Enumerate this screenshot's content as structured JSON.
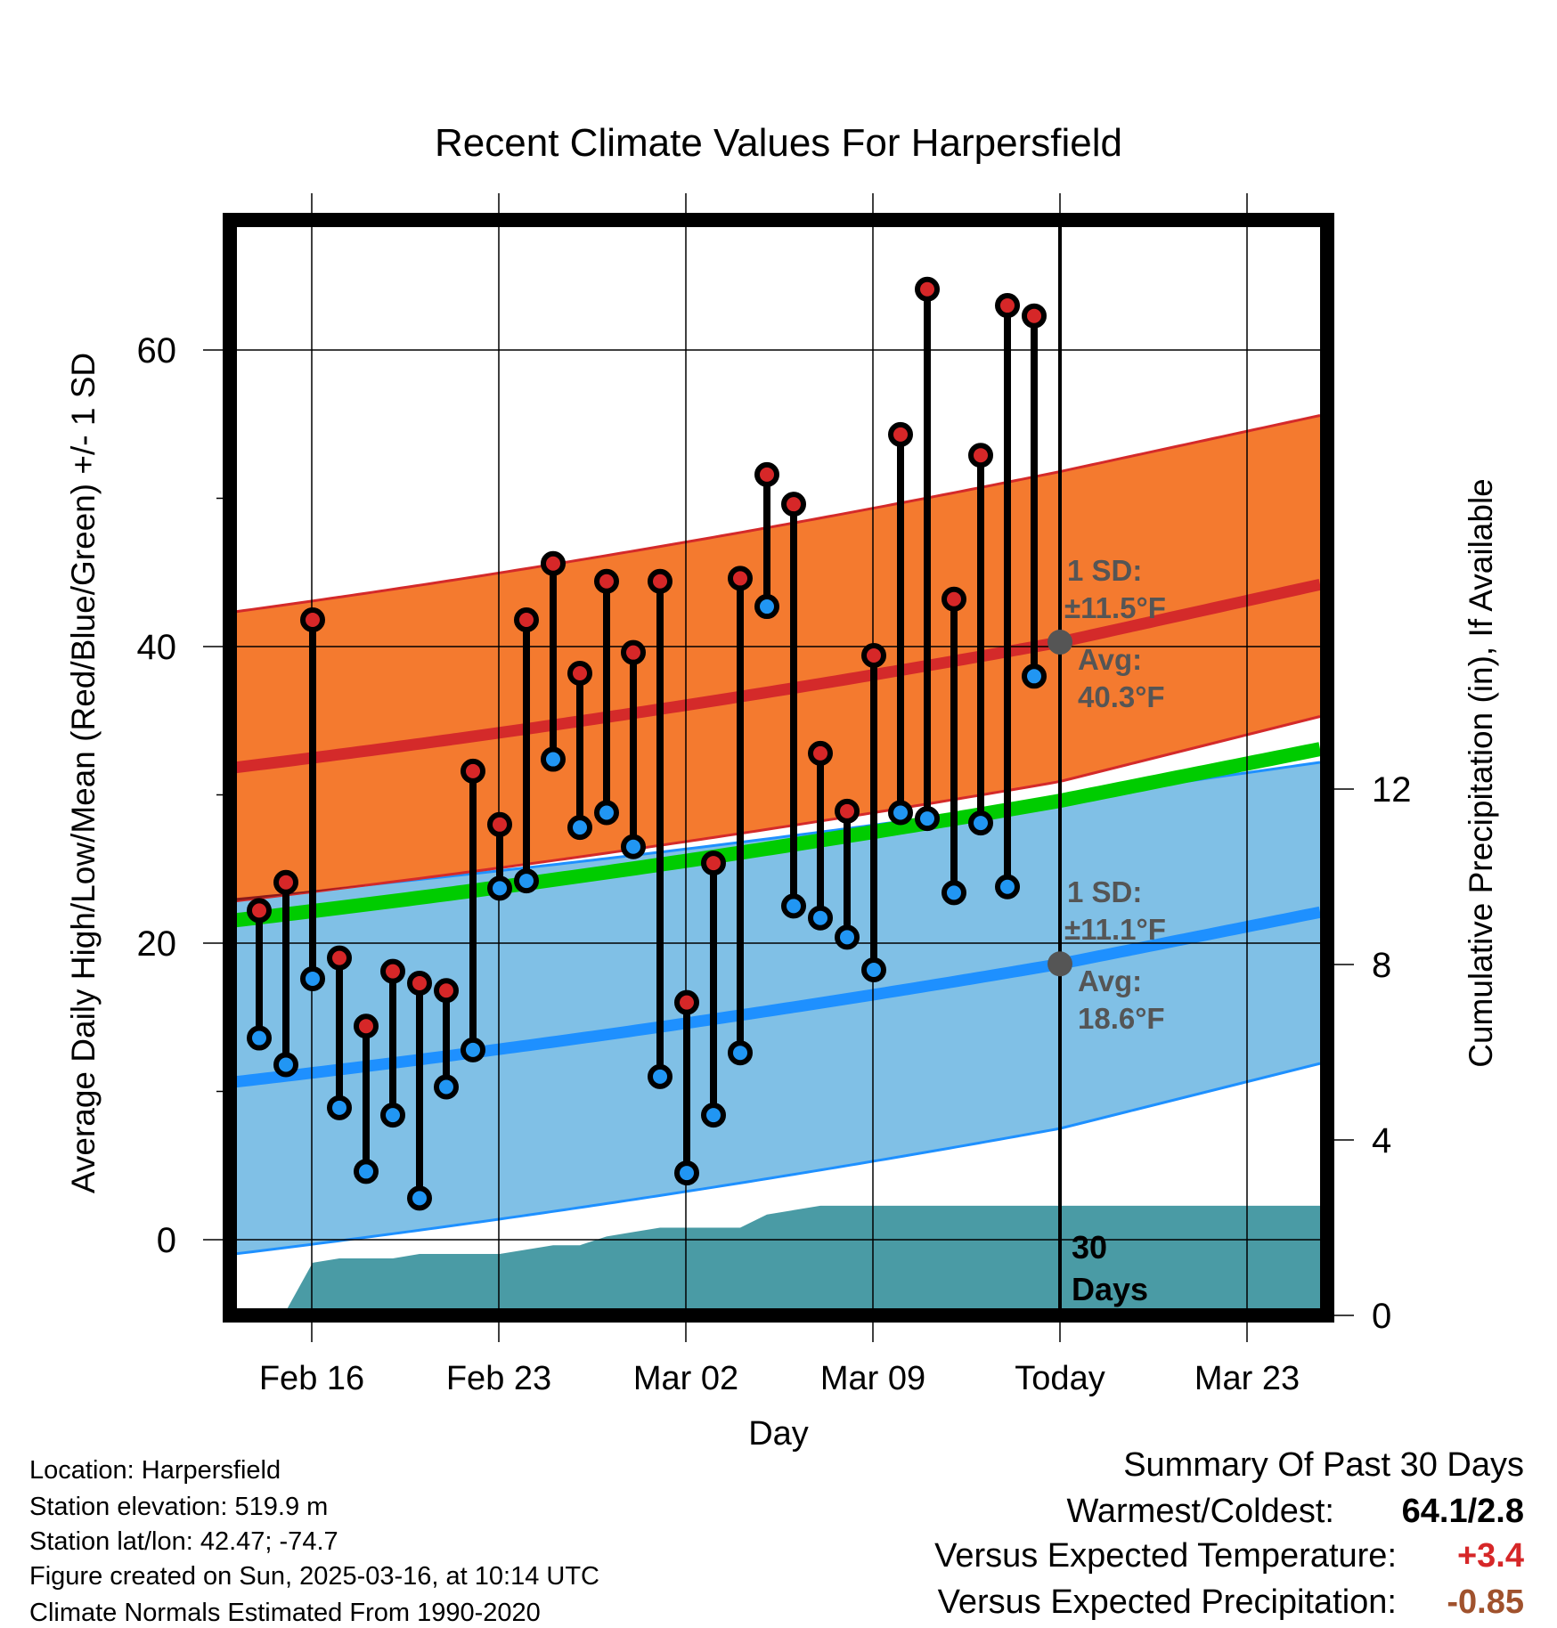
{
  "chart_data": {
    "type": "line",
    "title": "Recent Climate Values For Harpersfield",
    "xlabel": "Day",
    "ylabel": "Average Daily High/Low/Mean (Red/Blue/Green) +/- 1 SD",
    "y2label": "Cumulative Precipitation (in), If Available",
    "ylim": [
      -5,
      70
    ],
    "y2lim": [
      0,
      20
    ],
    "yticks": [
      0,
      20,
      40,
      60
    ],
    "y2ticks": [
      0,
      4,
      8,
      12
    ],
    "xticks": [
      "Feb 16",
      "Feb 23",
      "Mar 02",
      "Mar 09",
      "Today",
      "Mar 23"
    ],
    "grid": true,
    "days": [
      "Feb 14",
      "Feb 15",
      "Feb 16",
      "Feb 17",
      "Feb 18",
      "Feb 19",
      "Feb 20",
      "Feb 21",
      "Feb 22",
      "Feb 23",
      "Feb 24",
      "Feb 25",
      "Feb 26",
      "Feb 27",
      "Feb 28",
      "Mar 01",
      "Mar 02",
      "Mar 03",
      "Mar 04",
      "Mar 05",
      "Mar 06",
      "Mar 07",
      "Mar 08",
      "Mar 09",
      "Mar 10",
      "Mar 11",
      "Mar 12",
      "Mar 13",
      "Mar 14",
      "Mar 15"
    ],
    "series": [
      {
        "name": "High",
        "color": "#d62728",
        "values": [
          22.2,
          24.1,
          41.8,
          19.0,
          14.4,
          18.1,
          17.3,
          16.8,
          31.6,
          28.0,
          41.8,
          45.6,
          38.2,
          44.4,
          39.6,
          44.4,
          16.0,
          25.4,
          44.6,
          51.6,
          49.6,
          32.8,
          28.9,
          39.4,
          54.3,
          64.1,
          43.2,
          52.9,
          63.0,
          62.3
        ]
      },
      {
        "name": "Low",
        "color": "#2196f3",
        "values": [
          13.6,
          11.8,
          17.6,
          8.9,
          4.6,
          8.4,
          2.8,
          10.3,
          12.8,
          23.7,
          24.2,
          32.4,
          27.8,
          28.8,
          26.5,
          11.0,
          4.5,
          8.4,
          12.6,
          42.7,
          22.5,
          21.7,
          20.4,
          18.2,
          28.8,
          28.4,
          23.4,
          28.1,
          23.8,
          38.0
        ]
      }
    ],
    "normals": {
      "high_avg": {
        "start": 31.8,
        "today": 40.3,
        "end": 44.2
      },
      "high_band": {
        "lower_start": 22.8,
        "lower_today": 30.9,
        "lower_end": 35.3,
        "upper_start": 42.3,
        "upper_today": 51.8,
        "upper_end": 55.6
      },
      "mean_avg": {
        "start": 21.5,
        "today": 29.6,
        "end": 33.1
      },
      "low_avg": {
        "start": 10.6,
        "today": 18.6,
        "end": 22.1
      },
      "low_band": {
        "lower_start": -1.0,
        "lower_today": 7.5,
        "lower_end": 11.9,
        "upper_start": 23.0,
        "upper_today": 29.7,
        "upper_end": 32.2
      }
    },
    "precip_cumulative": [
      0,
      0.1,
      1.2,
      1.3,
      1.3,
      1.3,
      1.4,
      1.4,
      1.4,
      1.4,
      1.5,
      1.6,
      1.6,
      1.8,
      1.9,
      2.0,
      2.0,
      2.0,
      2.0,
      2.3,
      2.4,
      2.5,
      2.5,
      2.5,
      2.5,
      2.5,
      2.5,
      2.5,
      2.5,
      2.5
    ],
    "annotations": {
      "high_sd_label1": "1 SD:",
      "high_sd_label2": "±11.5°F",
      "high_avg_label1": "Avg:",
      "high_avg_label2": "40.3°F",
      "low_sd_label1": "1 SD:",
      "low_sd_label2": "±11.1°F",
      "low_avg_label1": "Avg:",
      "low_avg_label2": "18.6°F",
      "days_label1": "30",
      "days_label2": "Days"
    },
    "colors": {
      "high_band": "#f47a2f",
      "high_line": "#d42a2a",
      "low_band": "#80c0e6",
      "low_line": "#1e90ff",
      "mean_line": "#00cc00",
      "precip": "#4a9ba5",
      "annot_text": "#555555"
    }
  },
  "info": {
    "location": "Location: Harpersfield",
    "elevation": "Station elevation: 519.9 m",
    "latlon": "Station lat/lon: 42.47; -74.7",
    "created": "Figure created on Sun, 2025-03-16, at 10:14 UTC",
    "normals": "Climate Normals Estimated From 1990-2020"
  },
  "summary": {
    "title": "Summary Of Past 30 Days",
    "warmest_label": "Warmest/Coldest:",
    "warmest_value": "64.1/2.8",
    "temp_label": "Versus Expected Temperature:",
    "temp_value": "+3.4",
    "temp_color": "#d62728",
    "precip_label": "Versus Expected Precipitation:",
    "precip_value": "-0.85",
    "precip_color": "#a0522d"
  }
}
